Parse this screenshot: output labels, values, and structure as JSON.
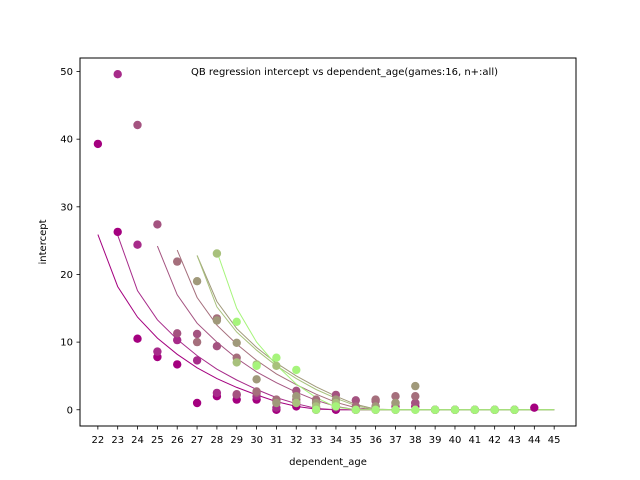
{
  "chart_data": {
    "type": "scatter",
    "title": "QB regression intercept vs dependent_age(games:16, n+:all)",
    "xlabel": "dependent_age",
    "ylabel": "intercept",
    "x_ticks": [
      22,
      23,
      24,
      25,
      26,
      27,
      28,
      29,
      30,
      31,
      32,
      33,
      34,
      35,
      36,
      37,
      38,
      39,
      40,
      41,
      42,
      43,
      44,
      45
    ],
    "y_ticks": [
      0,
      10,
      20,
      30,
      40,
      50
    ],
    "xlim": [
      21.1,
      46.1
    ],
    "ylim": [
      -2.4,
      52.0
    ],
    "grid": false,
    "series": [
      {
        "color": "#a4007f",
        "points": [
          [
            22,
            39.3
          ],
          [
            23,
            26.3
          ],
          [
            24,
            10.5
          ],
          [
            25,
            7.8
          ],
          [
            26,
            6.7
          ],
          [
            27,
            1.0
          ],
          [
            28,
            2.0
          ],
          [
            29,
            1.5
          ],
          [
            30,
            1.5
          ],
          [
            31,
            0.0
          ],
          [
            32,
            0.5
          ],
          [
            33,
            0.0
          ],
          [
            34,
            0.0
          ],
          [
            35,
            0.0
          ],
          [
            36,
            0.0
          ],
          [
            37,
            0.0
          ],
          [
            38,
            0.5
          ],
          [
            39,
            0.0
          ],
          [
            40,
            0.0
          ],
          [
            41,
            0.0
          ],
          [
            42,
            0.0
          ],
          [
            43,
            0.0
          ],
          [
            44,
            0.3
          ]
        ],
        "curve": [
          [
            22,
            25.9
          ],
          [
            23,
            18.2
          ],
          [
            24,
            13.7
          ],
          [
            25,
            10.6
          ],
          [
            26,
            8.2
          ],
          [
            27,
            6.2
          ],
          [
            28,
            4.6
          ],
          [
            29,
            3.3
          ],
          [
            30,
            2.2
          ],
          [
            31,
            1.2
          ],
          [
            32,
            0.5
          ],
          [
            33,
            0.1
          ],
          [
            34,
            0.0
          ],
          [
            35,
            0.0
          ],
          [
            36,
            0.0
          ],
          [
            37,
            0.0
          ],
          [
            38,
            0.0
          ],
          [
            39,
            0.0
          ],
          [
            40,
            0.0
          ],
          [
            41,
            0.0
          ],
          [
            42,
            0.0
          ],
          [
            43,
            0.0
          ],
          [
            44,
            0.0
          ],
          [
            45,
            0.0
          ]
        ]
      },
      {
        "color": "#a72b8a",
        "points": [
          [
            23,
            49.6
          ],
          [
            24,
            24.4
          ],
          [
            25,
            8.6
          ],
          [
            26,
            10.3
          ],
          [
            27,
            7.3
          ],
          [
            28,
            2.5
          ],
          [
            29,
            2.2
          ],
          [
            30,
            2.0
          ],
          [
            31,
            0.3
          ],
          [
            32,
            1.0
          ],
          [
            33,
            0.3
          ],
          [
            34,
            0.3
          ],
          [
            35,
            0.0
          ],
          [
            36,
            0.5
          ],
          [
            37,
            0.5
          ],
          [
            38,
            1.0
          ],
          [
            39,
            0.0
          ],
          [
            40,
            0.0
          ],
          [
            41,
            0.0
          ],
          [
            42,
            0.0
          ],
          [
            43,
            0.0
          ]
        ],
        "curve": [
          [
            23,
            25.8
          ],
          [
            24,
            17.6
          ],
          [
            25,
            13.3
          ],
          [
            26,
            10.4
          ],
          [
            27,
            8.0
          ],
          [
            28,
            6.0
          ],
          [
            29,
            4.4
          ],
          [
            30,
            3.0
          ],
          [
            31,
            1.8
          ],
          [
            32,
            0.9
          ],
          [
            33,
            0.2
          ],
          [
            34,
            0.0
          ],
          [
            35,
            0.0
          ],
          [
            36,
            0.0
          ],
          [
            37,
            0.0
          ],
          [
            38,
            0.0
          ],
          [
            39,
            0.0
          ],
          [
            40,
            0.0
          ],
          [
            41,
            0.0
          ],
          [
            42,
            0.0
          ],
          [
            43,
            0.0
          ],
          [
            44,
            0.0
          ],
          [
            45,
            0.0
          ]
        ]
      },
      {
        "color": "#a45380",
        "points": [
          [
            24,
            42.1
          ],
          [
            25,
            27.4
          ],
          [
            26,
            11.3
          ],
          [
            27,
            11.2
          ],
          [
            28,
            9.4
          ],
          [
            29,
            2.3
          ],
          [
            30,
            2.5
          ],
          [
            31,
            1.3
          ],
          [
            32,
            2.8
          ],
          [
            33,
            1.0
          ],
          [
            34,
            2.2
          ],
          [
            35,
            1.4
          ],
          [
            36,
            1.3
          ],
          [
            37,
            1.0
          ],
          [
            38,
            1.0
          ],
          [
            39,
            0.0
          ],
          [
            40,
            0.0
          ],
          [
            41,
            0.0
          ],
          [
            42,
            0.0
          ],
          [
            43,
            0.0
          ]
        ],
        "curve": [
          [
            25,
            24.2
          ],
          [
            26,
            17.0
          ],
          [
            27,
            12.8
          ],
          [
            28,
            10.0
          ],
          [
            29,
            7.6
          ],
          [
            30,
            5.6
          ],
          [
            31,
            4.0
          ],
          [
            32,
            2.6
          ],
          [
            33,
            1.4
          ],
          [
            34,
            0.5
          ],
          [
            35,
            0.0
          ],
          [
            36,
            0.0
          ],
          [
            37,
            0.0
          ],
          [
            38,
            0.0
          ],
          [
            39,
            0.0
          ],
          [
            40,
            0.0
          ],
          [
            41,
            0.0
          ],
          [
            42,
            0.0
          ],
          [
            43,
            0.0
          ],
          [
            44,
            0.0
          ],
          [
            45,
            0.0
          ]
        ]
      },
      {
        "color": "#a56f7c",
        "points": [
          [
            26,
            21.9
          ],
          [
            27,
            10.0
          ],
          [
            28,
            13.5
          ],
          [
            29,
            7.7
          ],
          [
            30,
            2.7
          ],
          [
            31,
            1.5
          ],
          [
            32,
            1.5
          ],
          [
            33,
            1.5
          ],
          [
            34,
            0.5
          ],
          [
            35,
            0.5
          ],
          [
            36,
            1.5
          ],
          [
            37,
            2.0
          ],
          [
            38,
            2.0
          ],
          [
            39,
            0.0
          ],
          [
            40,
            0.0
          ],
          [
            41,
            0.0
          ],
          [
            42,
            0.0
          ],
          [
            43,
            0.0
          ]
        ],
        "curve": [
          [
            26,
            23.6
          ],
          [
            27,
            16.6
          ],
          [
            28,
            12.5
          ],
          [
            29,
            9.7
          ],
          [
            30,
            7.3
          ],
          [
            31,
            5.3
          ],
          [
            32,
            3.7
          ],
          [
            33,
            2.3
          ],
          [
            34,
            1.1
          ],
          [
            35,
            0.3
          ],
          [
            36,
            0.0
          ],
          [
            37,
            0.0
          ],
          [
            38,
            0.0
          ],
          [
            39,
            0.0
          ],
          [
            40,
            0.0
          ],
          [
            41,
            0.0
          ],
          [
            42,
            0.0
          ],
          [
            43,
            0.0
          ],
          [
            44,
            0.0
          ],
          [
            45,
            0.0
          ]
        ]
      },
      {
        "color": "#a0997a",
        "points": [
          [
            27,
            19.0
          ],
          [
            28,
            13.2
          ],
          [
            29,
            9.9
          ],
          [
            30,
            4.5
          ],
          [
            31,
            1.0
          ],
          [
            32,
            2.0
          ],
          [
            33,
            1.0
          ],
          [
            34,
            1.5
          ],
          [
            35,
            0.0
          ],
          [
            36,
            0.5
          ],
          [
            37,
            1.0
          ],
          [
            38,
            3.5
          ],
          [
            39,
            0.0
          ],
          [
            40,
            0.0
          ],
          [
            41,
            0.0
          ],
          [
            42,
            0.0
          ],
          [
            43,
            0.0
          ]
        ],
        "curve": [
          [
            27,
            22.8
          ],
          [
            28,
            16.0
          ],
          [
            29,
            12.0
          ],
          [
            30,
            9.2
          ],
          [
            31,
            6.9
          ],
          [
            32,
            5.0
          ],
          [
            33,
            3.4
          ],
          [
            34,
            2.0
          ],
          [
            35,
            0.8
          ],
          [
            36,
            0.1
          ],
          [
            37,
            0.0
          ],
          [
            38,
            0.0
          ],
          [
            39,
            0.0
          ],
          [
            40,
            0.0
          ],
          [
            41,
            0.0
          ],
          [
            42,
            0.0
          ],
          [
            43,
            0.0
          ],
          [
            44,
            0.0
          ],
          [
            45,
            0.0
          ]
        ]
      },
      {
        "color": "#a8c17c",
        "points": [
          [
            28,
            23.1
          ],
          [
            29,
            7.0
          ],
          [
            30,
            6.7
          ],
          [
            31,
            6.5
          ],
          [
            32,
            1.0
          ],
          [
            33,
            0.5
          ],
          [
            34,
            1.0
          ],
          [
            35,
            0.0
          ],
          [
            36,
            0.0
          ],
          [
            37,
            0.0
          ],
          [
            38,
            0.0
          ],
          [
            39,
            0.0
          ],
          [
            40,
            0.0
          ],
          [
            41,
            0.0
          ],
          [
            42,
            0.0
          ],
          [
            43,
            0.0
          ]
        ],
        "curve": [
          [
            27,
            22.8
          ],
          [
            28,
            15.2
          ],
          [
            29,
            11.5
          ],
          [
            30,
            8.8
          ],
          [
            31,
            6.5
          ],
          [
            32,
            4.6
          ],
          [
            33,
            3.0
          ],
          [
            34,
            1.7
          ],
          [
            35,
            0.6
          ],
          [
            36,
            0.0
          ],
          [
            37,
            0.0
          ],
          [
            38,
            0.0
          ],
          [
            39,
            0.0
          ],
          [
            40,
            0.0
          ],
          [
            41,
            0.0
          ],
          [
            42,
            0.0
          ],
          [
            43,
            0.0
          ],
          [
            44,
            0.0
          ],
          [
            45,
            0.0
          ]
        ]
      },
      {
        "color": "#a6f47b",
        "points": [
          [
            29,
            13.0
          ],
          [
            30,
            6.5
          ],
          [
            31,
            7.7
          ],
          [
            32,
            5.9
          ],
          [
            33,
            0.0
          ],
          [
            34,
            0.5
          ],
          [
            35,
            0.0
          ],
          [
            36,
            0.0
          ],
          [
            37,
            0.0
          ],
          [
            38,
            0.0
          ],
          [
            39,
            0.0
          ],
          [
            40,
            0.0
          ],
          [
            41,
            0.0
          ],
          [
            42,
            0.0
          ],
          [
            43,
            0.0
          ]
        ],
        "curve": [
          [
            28,
            23.4
          ],
          [
            29,
            15.0
          ],
          [
            30,
            10.0
          ],
          [
            31,
            6.6
          ],
          [
            32,
            3.8
          ],
          [
            33,
            1.8
          ],
          [
            34,
            0.4
          ],
          [
            35,
            0.0
          ],
          [
            36,
            0.0
          ],
          [
            37,
            0.0
          ],
          [
            38,
            0.0
          ],
          [
            39,
            0.0
          ],
          [
            40,
            0.0
          ],
          [
            41,
            0.0
          ],
          [
            42,
            0.0
          ],
          [
            43,
            0.0
          ],
          [
            44,
            0.0
          ],
          [
            45,
            0.0
          ]
        ]
      }
    ]
  }
}
